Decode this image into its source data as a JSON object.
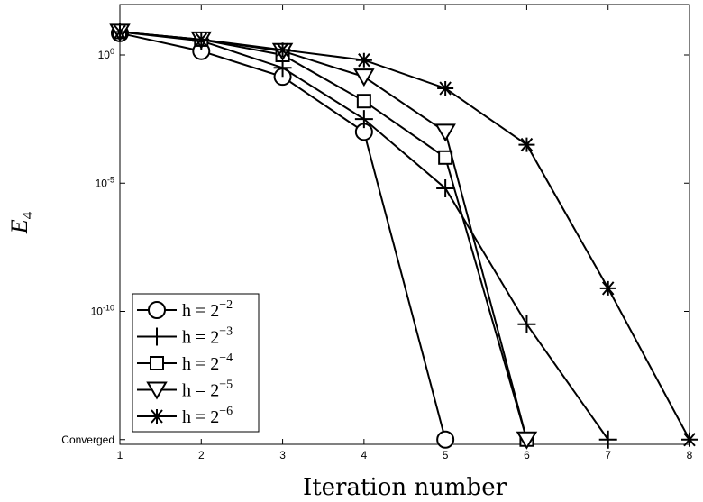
{
  "chart_data": {
    "type": "line",
    "xlabel": "Iteration number",
    "ylabel": "E",
    "ylabel_sub": "4",
    "y_scale": "log",
    "xlim": [
      1,
      8
    ],
    "ylim_exp": [
      -15,
      1
    ],
    "x_ticks": [
      "1",
      "2",
      "3",
      "4",
      "5",
      "6",
      "7",
      "8"
    ],
    "y_ticks": [
      {
        "exp": 0,
        "base": "10",
        "sup": "0"
      },
      {
        "exp": -5,
        "base": "10",
        "sup": "-5"
      },
      {
        "exp": -10,
        "base": "10",
        "sup": "-10"
      }
    ],
    "converged_label": "Converged",
    "converged_exp": -15,
    "legend_position": "bottom-left",
    "series": [
      {
        "name": "h = 2^-2",
        "name_base": "h = 2",
        "name_sup": "−2",
        "marker": "circle",
        "x": [
          1,
          2,
          3,
          4,
          5
        ],
        "y_exp": [
          0.85,
          0.15,
          -0.85,
          -3.0,
          -15
        ]
      },
      {
        "name": "h = 2^-3",
        "name_base": "h = 2",
        "name_sup": "−3",
        "marker": "plus",
        "x": [
          1,
          2,
          3,
          4,
          5,
          6,
          7
        ],
        "y_exp": [
          0.9,
          0.55,
          -0.5,
          -2.5,
          -5.2,
          -10.5,
          -15
        ]
      },
      {
        "name": "h = 2^-4",
        "name_base": "h = 2",
        "name_sup": "−4",
        "marker": "square",
        "x": [
          1,
          2,
          3,
          4,
          5,
          6
        ],
        "y_exp": [
          0.9,
          0.6,
          0.0,
          -1.8,
          -4.0,
          -15
        ]
      },
      {
        "name": "h = 2^-5",
        "name_base": "h = 2",
        "name_sup": "−5",
        "marker": "triangle",
        "x": [
          1,
          2,
          3,
          4,
          5,
          6
        ],
        "y_exp": [
          0.9,
          0.6,
          0.15,
          -0.85,
          -3.0,
          -15
        ]
      },
      {
        "name": "h = 2^-6",
        "name_base": "h = 2",
        "name_sup": "−6",
        "marker": "asterisk",
        "x": [
          1,
          2,
          3,
          4,
          5,
          6,
          7,
          8
        ],
        "y_exp": [
          0.9,
          0.6,
          0.2,
          -0.2,
          -1.3,
          -3.5,
          -9.1,
          -15
        ]
      }
    ]
  }
}
